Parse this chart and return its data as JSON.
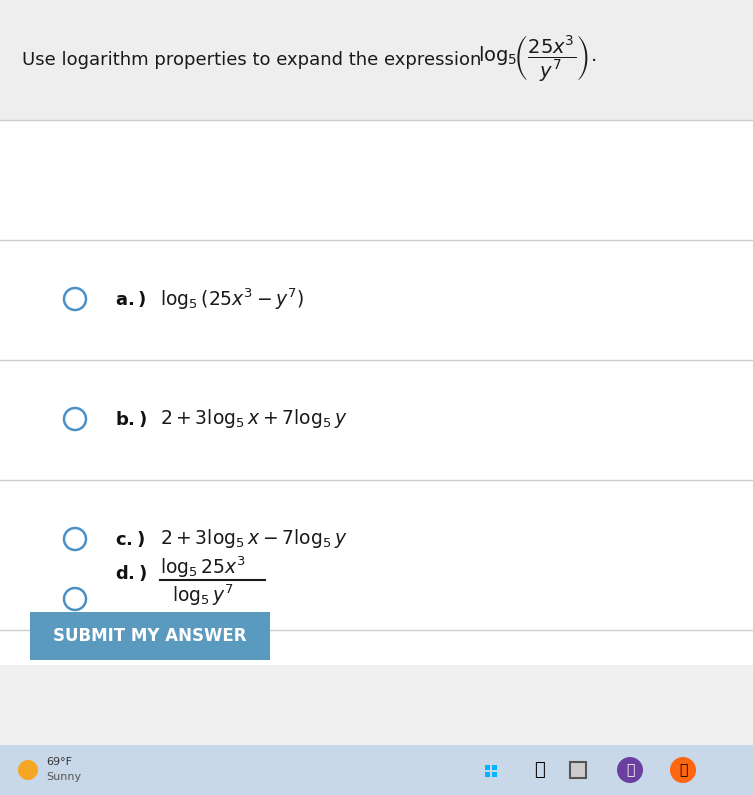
{
  "bg_color": "#f0f0f0",
  "white_bg": "#ffffff",
  "question_bg": "#eeeeee",
  "header_text": "Use logarithm properties to expand the expression ",
  "header_math": "log_5\\left(\\frac{25x^3}{y^7}\\right).",
  "options": [
    {
      "label": "a.)",
      "math": "\\log_5(25x^3-y^7)"
    },
    {
      "label": "b.)",
      "math": "2+3\\log_5x+7\\log_5y"
    },
    {
      "label": "c.)",
      "math": "2+3\\log_5x-7\\log_5y"
    },
    {
      "label": "d.)",
      "math_top": "\\log_525x^3",
      "math_bot": "\\log_5y^7",
      "is_fraction": true
    }
  ],
  "submit_text": "SUBMIT MY ANSWER",
  "submit_bg": "#5b9abf",
  "submit_text_color": "#ffffff",
  "taskbar_bg": "#c8d8e8",
  "taskbar_text": "69°F\nSunny",
  "circle_color": "#4a90c4",
  "divider_color": "#cccccc",
  "text_color": "#1a1a1a",
  "label_bold_color": "#111111"
}
